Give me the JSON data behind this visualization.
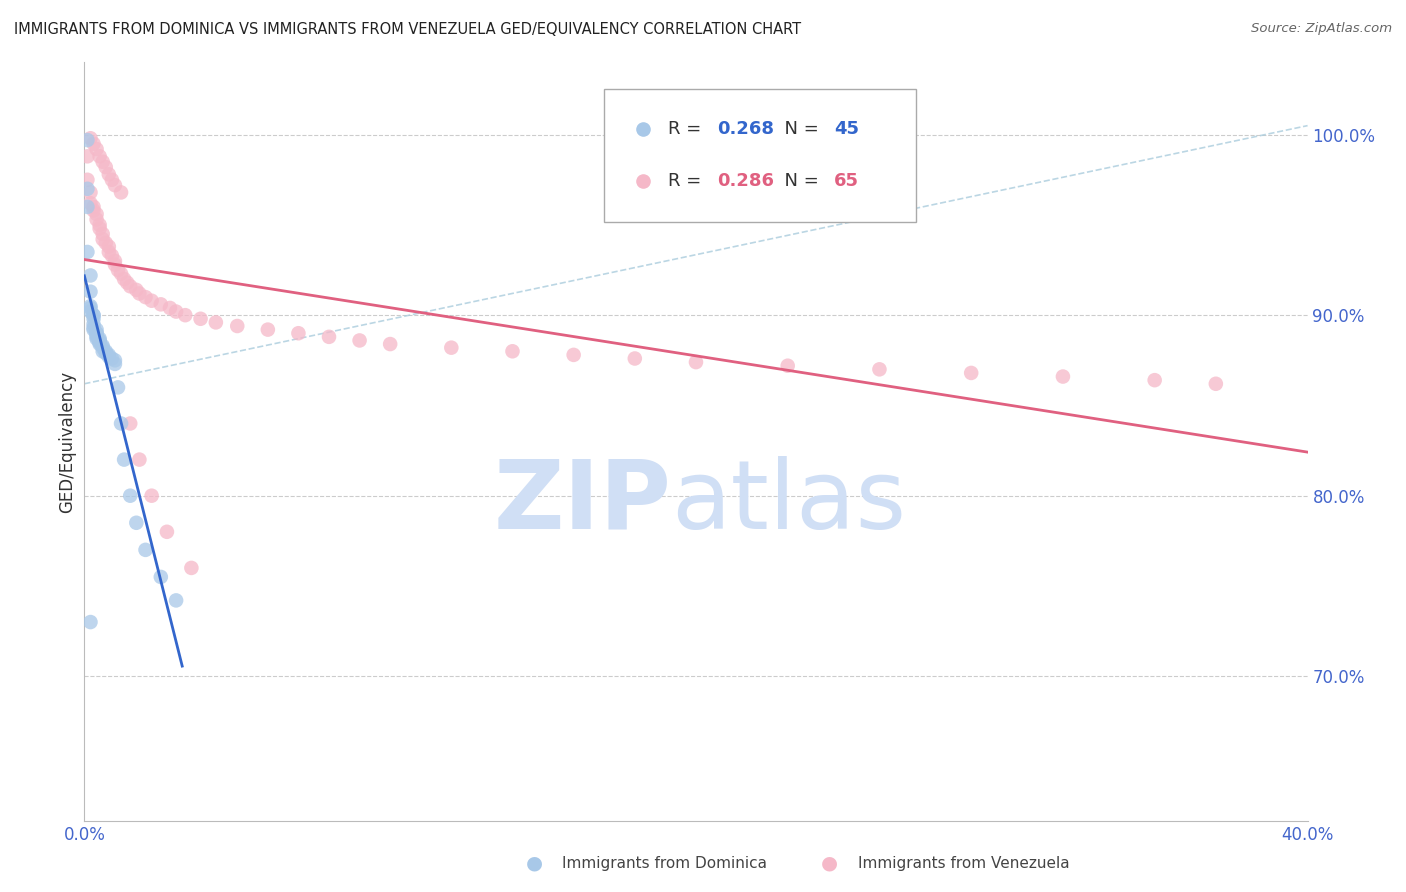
{
  "title": "IMMIGRANTS FROM DOMINICA VS IMMIGRANTS FROM VENEZUELA GED/EQUIVALENCY CORRELATION CHART",
  "source": "Source: ZipAtlas.com",
  "ylabel": "GED/Equivalency",
  "ytick_values": [
    1.0,
    0.9,
    0.8,
    0.7
  ],
  "ytick_labels": [
    "100.0%",
    "90.0%",
    "80.0%",
    "70.0%"
  ],
  "xlim": [
    0.0,
    0.4
  ],
  "ylim": [
    0.62,
    1.04
  ],
  "legend_blue_r": "0.268",
  "legend_blue_n": "45",
  "legend_pink_r": "0.286",
  "legend_pink_n": "65",
  "legend_blue_label": "Immigrants from Dominica",
  "legend_pink_label": "Immigrants from Venezuela",
  "blue_scatter_color": "#a8c8e8",
  "pink_scatter_color": "#f5b8c8",
  "blue_line_color": "#3366cc",
  "pink_line_color": "#e06080",
  "axis_label_color": "#4466cc",
  "watermark_color": "#d0dff5",
  "dominica_x": [
    0.001,
    0.001,
    0.001,
    0.001,
    0.002,
    0.002,
    0.002,
    0.002,
    0.002,
    0.003,
    0.003,
    0.003,
    0.003,
    0.003,
    0.003,
    0.004,
    0.004,
    0.004,
    0.004,
    0.004,
    0.004,
    0.005,
    0.005,
    0.005,
    0.005,
    0.005,
    0.006,
    0.006,
    0.006,
    0.007,
    0.007,
    0.008,
    0.008,
    0.009,
    0.01,
    0.01,
    0.011,
    0.012,
    0.013,
    0.015,
    0.017,
    0.02,
    0.025,
    0.03,
    0.002
  ],
  "dominica_y": [
    0.997,
    0.97,
    0.96,
    0.935,
    0.922,
    0.913,
    0.905,
    0.904,
    0.902,
    0.9,
    0.9,
    0.898,
    0.895,
    0.893,
    0.892,
    0.892,
    0.89,
    0.89,
    0.889,
    0.888,
    0.887,
    0.887,
    0.886,
    0.885,
    0.885,
    0.884,
    0.883,
    0.882,
    0.88,
    0.88,
    0.879,
    0.878,
    0.877,
    0.876,
    0.875,
    0.873,
    0.86,
    0.84,
    0.82,
    0.8,
    0.785,
    0.77,
    0.755,
    0.742,
    0.73
  ],
  "venezuela_x": [
    0.001,
    0.001,
    0.002,
    0.002,
    0.003,
    0.003,
    0.004,
    0.004,
    0.005,
    0.005,
    0.006,
    0.006,
    0.007,
    0.008,
    0.008,
    0.009,
    0.01,
    0.01,
    0.011,
    0.012,
    0.013,
    0.014,
    0.015,
    0.017,
    0.018,
    0.02,
    0.022,
    0.025,
    0.028,
    0.03,
    0.033,
    0.038,
    0.043,
    0.05,
    0.06,
    0.07,
    0.08,
    0.09,
    0.1,
    0.12,
    0.14,
    0.16,
    0.18,
    0.2,
    0.23,
    0.26,
    0.29,
    0.32,
    0.35,
    0.37,
    0.002,
    0.003,
    0.004,
    0.005,
    0.006,
    0.007,
    0.008,
    0.009,
    0.01,
    0.012,
    0.015,
    0.018,
    0.022,
    0.027,
    0.035
  ],
  "venezuela_y": [
    0.988,
    0.975,
    0.968,
    0.962,
    0.96,
    0.958,
    0.956,
    0.953,
    0.95,
    0.948,
    0.945,
    0.942,
    0.94,
    0.938,
    0.935,
    0.933,
    0.93,
    0.928,
    0.925,
    0.923,
    0.92,
    0.918,
    0.916,
    0.914,
    0.912,
    0.91,
    0.908,
    0.906,
    0.904,
    0.902,
    0.9,
    0.898,
    0.896,
    0.894,
    0.892,
    0.89,
    0.888,
    0.886,
    0.884,
    0.882,
    0.88,
    0.878,
    0.876,
    0.874,
    0.872,
    0.87,
    0.868,
    0.866,
    0.864,
    0.862,
    0.998,
    0.995,
    0.992,
    0.988,
    0.985,
    0.982,
    0.978,
    0.975,
    0.972,
    0.968,
    0.84,
    0.82,
    0.8,
    0.78,
    0.76
  ]
}
